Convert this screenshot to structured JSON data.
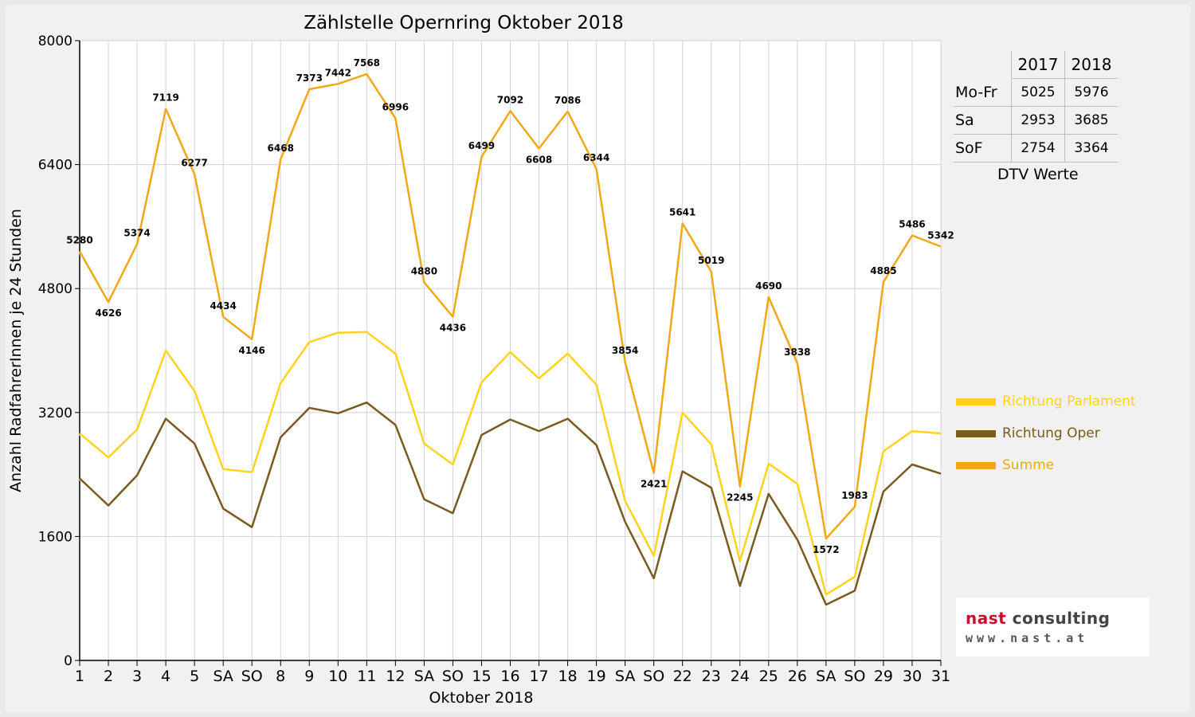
{
  "colors": {
    "parlament": "#ffd21e",
    "oper": "#7a5a1e",
    "summe": "#f0a818",
    "weekend_red": "#ff0000",
    "logo_red": "#c8102e",
    "logo_dark": "#444444"
  },
  "chart_data": {
    "type": "line",
    "title": "Zählstelle Opernring Oktober 2018",
    "xlabel": "Oktober 2018",
    "ylabel": "Anzahl RadfahrerInnen je 24 Stunden",
    "ylim": [
      0,
      8000
    ],
    "yticks": [
      0,
      1600,
      3200,
      4800,
      6400,
      8000
    ],
    "grid": true,
    "legend_position": "right",
    "categories": [
      "1",
      "2",
      "3",
      "4",
      "5",
      "SA",
      "SO",
      "8",
      "9",
      "10",
      "11",
      "12",
      "SA",
      "SO",
      "15",
      "16",
      "17",
      "18",
      "19",
      "SA",
      "SO",
      "22",
      "23",
      "24",
      "25",
      "26",
      "SA",
      "SO",
      "29",
      "30",
      "31"
    ],
    "red_categories": [
      6,
      13,
      20,
      25,
      27
    ],
    "series": [
      {
        "name": "Richtung Parlament",
        "color_key": "parlament",
        "values": [
          2930,
          2620,
          2980,
          4000,
          3480,
          2470,
          2430,
          3580,
          4110,
          4230,
          4240,
          3960,
          2800,
          2530,
          3590,
          3980,
          3640,
          3960,
          3560,
          2060,
          1350,
          3200,
          2790,
          1280,
          2540,
          2280,
          850,
          1080,
          2700,
          2960,
          2930
        ]
      },
      {
        "name": "Richtung Oper",
        "color_key": "oper",
        "values": [
          2350,
          2000,
          2390,
          3120,
          2800,
          1960,
          1720,
          2880,
          3260,
          3190,
          3330,
          3040,
          2080,
          1900,
          2910,
          3110,
          2960,
          3120,
          2780,
          1790,
          1060,
          2440,
          2230,
          960,
          2150,
          1560,
          720,
          900,
          2180,
          2530,
          2410
        ]
      },
      {
        "name": "Summe",
        "color_key": "summe",
        "values": [
          5280,
          4626,
          5374,
          7119,
          6277,
          4434,
          4146,
          6468,
          7373,
          7442,
          7568,
          6996,
          4880,
          4436,
          6499,
          7092,
          6608,
          7086,
          6344,
          3854,
          2421,
          5641,
          5019,
          2245,
          4690,
          3838,
          1572,
          1983,
          4885,
          5486,
          5342
        ],
        "labels": [
          "5280",
          "4626",
          "5374",
          "7119",
          "6277",
          "4434",
          "4146",
          "6468",
          "7373",
          "7442",
          "7568",
          "6996",
          "4880",
          "4436",
          "6499",
          "7092",
          "6608",
          "7086",
          "6344",
          "3854",
          "2421",
          "5641",
          "5019",
          "2245",
          "4690",
          "3838",
          "1572",
          "1983",
          "4885",
          "5486",
          "5342"
        ]
      }
    ]
  },
  "dtv_table": {
    "headers": [
      "2017",
      "2018"
    ],
    "rows": [
      {
        "label": "Mo-Fr",
        "v2017": "5025",
        "v2018": "5976"
      },
      {
        "label": "Sa",
        "v2017": "2953",
        "v2018": "3685"
      },
      {
        "label": "SoF",
        "v2017": "2754",
        "v2018": "3364"
      }
    ],
    "caption": "DTV Werte"
  },
  "legend": {
    "parlament": "Richtung Parlament",
    "oper": "Richtung Oper",
    "summe": "Summe"
  },
  "logo": {
    "name_part1": "nast",
    "name_part2": " consulting",
    "url": "www.nast.at"
  }
}
